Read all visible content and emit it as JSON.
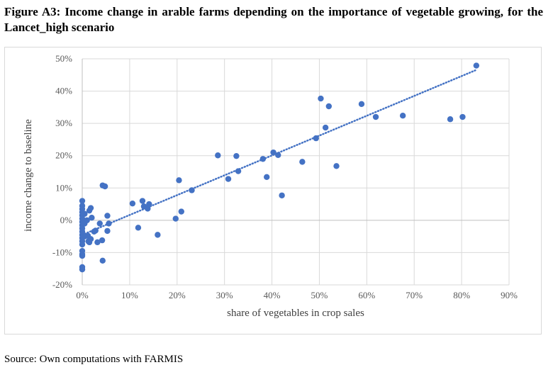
{
  "figure": {
    "title": "Figure A3: Income change in arable farms depending on the importance of vegetable growing, for the Lancet_high scenario",
    "source": "Source: Own computations with FARMIS"
  },
  "chart_data": {
    "type": "scatter",
    "title": "",
    "xlabel": "share of vegetables in crop sales",
    "ylabel": "income change to baseline",
    "xlim": [
      0,
      90
    ],
    "ylim": [
      -20,
      50
    ],
    "x_ticks": [
      "0%",
      "10%",
      "20%",
      "30%",
      "40%",
      "50%",
      "60%",
      "70%",
      "80%",
      "90%"
    ],
    "y_ticks": [
      "50%",
      "40%",
      "30%",
      "20%",
      "10%",
      "0%",
      "-10%",
      "-20%"
    ],
    "grid": true,
    "legend": "none",
    "marker_color": "#4472c4",
    "trendline": {
      "type": "linear",
      "style": "dotted",
      "color": "#4472c4",
      "from": [
        0,
        -4.5
      ],
      "to": [
        83,
        46.5
      ]
    },
    "points": [
      {
        "x": 0,
        "y": 6
      },
      {
        "x": 0,
        "y": 4.5
      },
      {
        "x": 0,
        "y": 3.5
      },
      {
        "x": 0,
        "y": 2.5
      },
      {
        "x": 0,
        "y": 1.5
      },
      {
        "x": 0,
        "y": 0.5
      },
      {
        "x": 0,
        "y": -0.5
      },
      {
        "x": 0,
        "y": -1.5
      },
      {
        "x": 0,
        "y": -2.5
      },
      {
        "x": 0,
        "y": -3.5
      },
      {
        "x": 0,
        "y": -4.5
      },
      {
        "x": 0,
        "y": -5.5
      },
      {
        "x": 0,
        "y": -6.5
      },
      {
        "x": 0,
        "y": -7.5
      },
      {
        "x": 0,
        "y": -9.5
      },
      {
        "x": 0,
        "y": -10.5
      },
      {
        "x": 0,
        "y": -11
      },
      {
        "x": 0,
        "y": -14.5
      },
      {
        "x": 0,
        "y": -15.2
      },
      {
        "x": 0.5,
        "y": 2
      },
      {
        "x": 0.5,
        "y": -1
      },
      {
        "x": 0.5,
        "y": -5
      },
      {
        "x": 1,
        "y": 0
      },
      {
        "x": 1.2,
        "y": -4.8
      },
      {
        "x": 1.3,
        "y": -6.5
      },
      {
        "x": 1.5,
        "y": -6.8
      },
      {
        "x": 1.8,
        "y": -5.8
      },
      {
        "x": 1.5,
        "y": 3
      },
      {
        "x": 1.8,
        "y": 3.8
      },
      {
        "x": 2,
        "y": 0.8
      },
      {
        "x": 2.8,
        "y": -3.2
      },
      {
        "x": 2.5,
        "y": -3.5
      },
      {
        "x": 3.2,
        "y": -6.8
      },
      {
        "x": 3.7,
        "y": -1
      },
      {
        "x": 4.2,
        "y": -6.2
      },
      {
        "x": 4.3,
        "y": -12.5
      },
      {
        "x": 4.3,
        "y": 10.8
      },
      {
        "x": 4.8,
        "y": 10.5
      },
      {
        "x": 5.3,
        "y": 1.4
      },
      {
        "x": 5.3,
        "y": -3.3
      },
      {
        "x": 5.6,
        "y": -1
      },
      {
        "x": 10.6,
        "y": 5.2
      },
      {
        "x": 11.8,
        "y": -2.3
      },
      {
        "x": 12.7,
        "y": 6
      },
      {
        "x": 13,
        "y": 4.3
      },
      {
        "x": 13.8,
        "y": 3.6
      },
      {
        "x": 14.1,
        "y": 5
      },
      {
        "x": 15.9,
        "y": -4.5
      },
      {
        "x": 19.7,
        "y": 0.5
      },
      {
        "x": 20.4,
        "y": 12.4
      },
      {
        "x": 20.9,
        "y": 2.7
      },
      {
        "x": 23.1,
        "y": 9.3
      },
      {
        "x": 28.6,
        "y": 20.1
      },
      {
        "x": 30.8,
        "y": 12.8
      },
      {
        "x": 32.5,
        "y": 19.9
      },
      {
        "x": 32.9,
        "y": 15.2
      },
      {
        "x": 38.1,
        "y": 19
      },
      {
        "x": 38.9,
        "y": 13.4
      },
      {
        "x": 40.3,
        "y": 21
      },
      {
        "x": 41.3,
        "y": 20.2
      },
      {
        "x": 42.1,
        "y": 7.7
      },
      {
        "x": 46.4,
        "y": 18.1
      },
      {
        "x": 49.3,
        "y": 25.4
      },
      {
        "x": 50.3,
        "y": 37.7
      },
      {
        "x": 51.3,
        "y": 28.7
      },
      {
        "x": 52,
        "y": 35.3
      },
      {
        "x": 53.6,
        "y": 16.8
      },
      {
        "x": 58.9,
        "y": 36
      },
      {
        "x": 61.9,
        "y": 32
      },
      {
        "x": 67.6,
        "y": 32.4
      },
      {
        "x": 77.6,
        "y": 31.3
      },
      {
        "x": 80.2,
        "y": 32
      },
      {
        "x": 83.1,
        "y": 47.9
      }
    ]
  }
}
